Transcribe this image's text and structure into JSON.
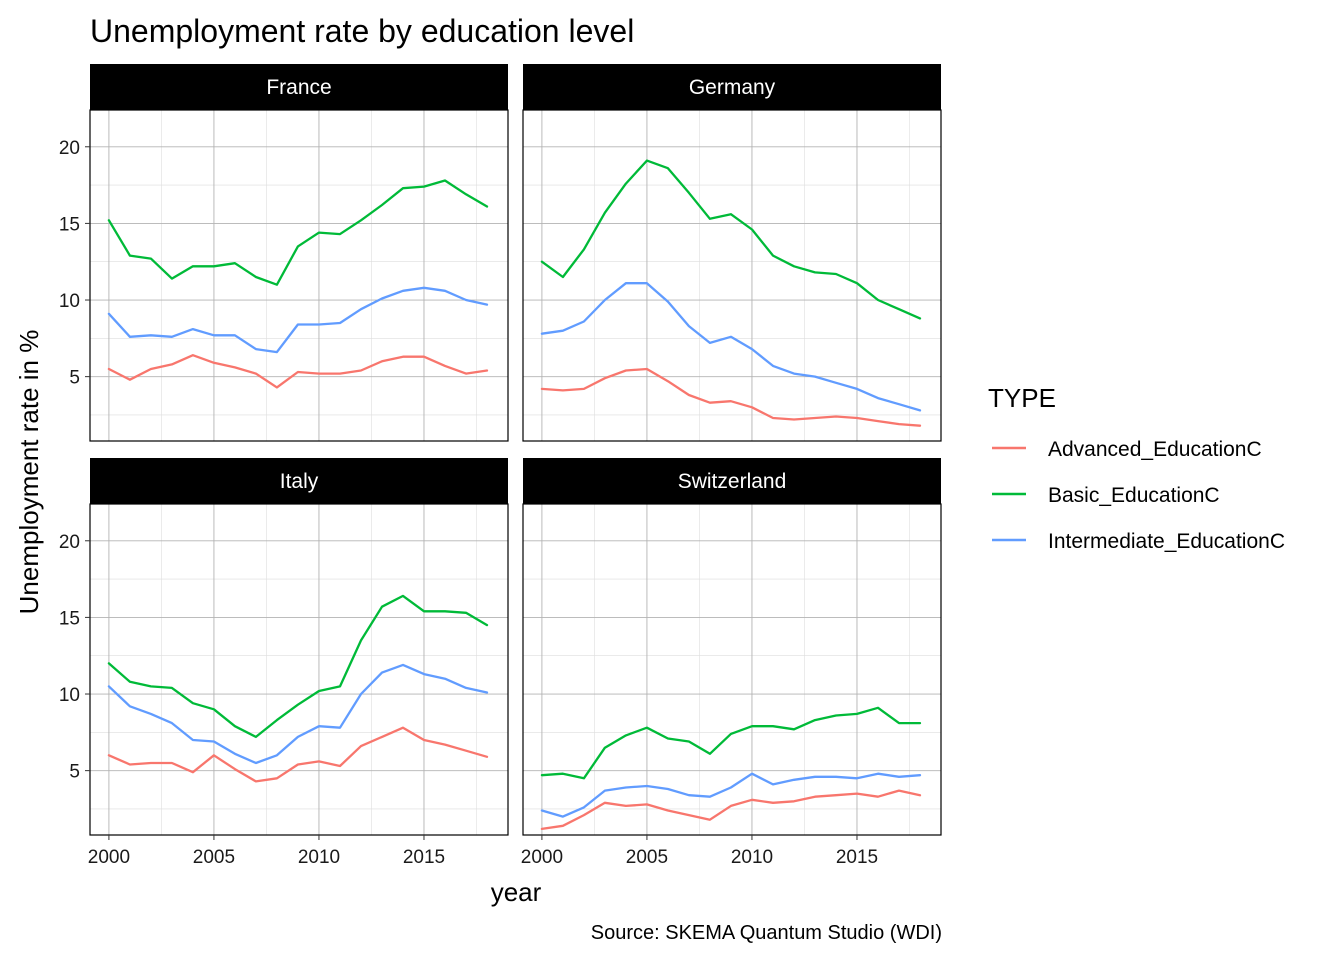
{
  "chart_data": {
    "type": "line",
    "title": "Unemployment rate by education level",
    "xlabel": "year",
    "ylabel": "Unemployment rate in %",
    "caption": "Source: SKEMA Quantum Studio (WDI)",
    "xlim": [
      1999.1,
      2019.0
    ],
    "ylim": [
      0.8,
      22.4
    ],
    "x_ticks": [
      2000,
      2005,
      2010,
      2015
    ],
    "x_tick_labels": [
      "2000",
      "2005",
      "2010",
      "2015"
    ],
    "y_ticks": [
      5,
      10,
      15,
      20
    ],
    "y_tick_labels": [
      "5",
      "10",
      "15",
      "20"
    ],
    "x_minor": [
      2002.5,
      2007.5,
      2012.5,
      2017.5
    ],
    "y_minor": [
      2.5,
      7.5,
      12.5,
      17.5
    ],
    "grid": true,
    "legend": {
      "title": "TYPE",
      "position": "right",
      "entries": [
        {
          "label": "Advanced_EducationC",
          "color": "#F8766D"
        },
        {
          "label": "Basic_EducationC",
          "color": "#00BA38"
        },
        {
          "label": "Intermediate_EducationC",
          "color": "#619CFF"
        }
      ]
    },
    "x": [
      2000,
      2001,
      2002,
      2003,
      2004,
      2005,
      2006,
      2007,
      2008,
      2009,
      2010,
      2011,
      2012,
      2013,
      2014,
      2015,
      2016,
      2017,
      2018
    ],
    "facets": [
      {
        "name": "France",
        "series": [
          {
            "name": "Advanced_EducationC",
            "color": "#F8766D",
            "values": [
              5.5,
              4.8,
              5.5,
              5.8,
              6.4,
              5.9,
              5.6,
              5.2,
              4.3,
              5.3,
              5.2,
              5.2,
              5.4,
              6.0,
              6.3,
              6.3,
              5.7,
              5.2,
              5.4
            ]
          },
          {
            "name": "Basic_EducationC",
            "color": "#00BA38",
            "values": [
              15.2,
              12.9,
              12.7,
              11.4,
              12.2,
              12.2,
              12.4,
              11.5,
              11.0,
              13.5,
              14.4,
              14.3,
              15.2,
              16.2,
              17.3,
              17.4,
              17.8,
              16.9,
              16.1
            ]
          },
          {
            "name": "Intermediate_EducationC",
            "color": "#619CFF",
            "values": [
              9.1,
              7.6,
              7.7,
              7.6,
              8.1,
              7.7,
              7.7,
              6.8,
              6.6,
              8.4,
              8.4,
              8.5,
              9.4,
              10.1,
              10.6,
              10.8,
              10.6,
              10.0,
              9.7
            ]
          }
        ]
      },
      {
        "name": "Germany",
        "series": [
          {
            "name": "Advanced_EducationC",
            "color": "#F8766D",
            "values": [
              4.2,
              4.1,
              4.2,
              4.9,
              5.4,
              5.5,
              4.7,
              3.8,
              3.3,
              3.4,
              3.0,
              2.3,
              2.2,
              2.3,
              2.4,
              2.3,
              2.1,
              1.9,
              1.8
            ]
          },
          {
            "name": "Basic_EducationC",
            "color": "#00BA38",
            "values": [
              12.5,
              11.5,
              13.3,
              15.7,
              17.6,
              19.1,
              18.6,
              17.0,
              15.3,
              15.6,
              14.6,
              12.9,
              12.2,
              11.8,
              11.7,
              11.1,
              10.0,
              9.4,
              8.8
            ]
          },
          {
            "name": "Intermediate_EducationC",
            "color": "#619CFF",
            "values": [
              7.8,
              8.0,
              8.6,
              10.0,
              11.1,
              11.1,
              9.9,
              8.3,
              7.2,
              7.6,
              6.8,
              5.7,
              5.2,
              5.0,
              4.6,
              4.2,
              3.6,
              3.2,
              2.8
            ]
          }
        ]
      },
      {
        "name": "Italy",
        "series": [
          {
            "name": "Advanced_EducationC",
            "color": "#F8766D",
            "values": [
              6.0,
              5.4,
              5.5,
              5.5,
              4.9,
              6.0,
              5.1,
              4.3,
              4.5,
              5.4,
              5.6,
              5.3,
              6.6,
              7.2,
              7.8,
              7.0,
              6.7,
              6.3,
              5.9
            ]
          },
          {
            "name": "Basic_EducationC",
            "color": "#00BA38",
            "values": [
              12.0,
              10.8,
              10.5,
              10.4,
              9.4,
              9.0,
              7.9,
              7.2,
              8.3,
              9.3,
              10.2,
              10.5,
              13.5,
              15.7,
              16.4,
              15.4,
              15.4,
              15.3,
              14.5
            ]
          },
          {
            "name": "Intermediate_EducationC",
            "color": "#619CFF",
            "values": [
              10.5,
              9.2,
              8.7,
              8.1,
              7.0,
              6.9,
              6.1,
              5.5,
              6.0,
              7.2,
              7.9,
              7.8,
              10.0,
              11.4,
              11.9,
              11.3,
              11.0,
              10.4,
              10.1
            ]
          }
        ]
      },
      {
        "name": "Switzerland",
        "series": [
          {
            "name": "Advanced_EducationC",
            "color": "#F8766D",
            "values": [
              1.2,
              1.4,
              2.1,
              2.9,
              2.7,
              2.8,
              2.4,
              2.1,
              1.8,
              2.7,
              3.1,
              2.9,
              3.0,
              3.3,
              3.4,
              3.5,
              3.3,
              3.7,
              3.4
            ]
          },
          {
            "name": "Basic_EducationC",
            "color": "#00BA38",
            "values": [
              4.7,
              4.8,
              4.5,
              6.5,
              7.3,
              7.8,
              7.1,
              6.9,
              6.1,
              7.4,
              7.9,
              7.9,
              7.7,
              8.3,
              8.6,
              8.7,
              9.1,
              8.1,
              8.1
            ]
          },
          {
            "name": "Intermediate_EducationC",
            "color": "#619CFF",
            "values": [
              2.4,
              2.0,
              2.6,
              3.7,
              3.9,
              4.0,
              3.8,
              3.4,
              3.3,
              3.9,
              4.8,
              4.1,
              4.4,
              4.6,
              4.6,
              4.5,
              4.8,
              4.6,
              4.7
            ]
          }
        ]
      }
    ]
  }
}
